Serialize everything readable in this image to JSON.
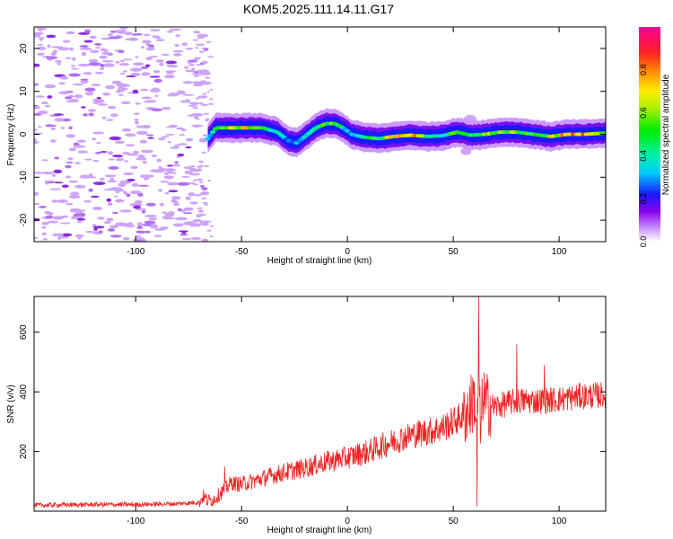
{
  "title": "KOM5.2025.111.14.11.G17",
  "chart_data": [
    {
      "type": "heatmap",
      "xlabel": "Height of straight line (km)",
      "ylabel": "Frequency (Hz)",
      "xlim": [
        -148,
        122
      ],
      "ylim": [
        -25,
        25
      ],
      "xticks": [
        -100,
        -50,
        0,
        50,
        100
      ],
      "xtick_labels": [
        "-100",
        "-50",
        "0",
        "50",
        "100"
      ],
      "yticks": [
        -20,
        -10,
        0,
        10,
        20
      ],
      "ytick_labels": [
        "-20",
        "-10",
        "0",
        "10",
        "20"
      ],
      "colorbar": {
        "label": "Normalized spectral amplitude",
        "range": [
          0,
          1
        ],
        "ticks": [
          0,
          0.2,
          0.4,
          0.6,
          0.8
        ],
        "tick_labels": [
          "0.0",
          "0.2",
          "0.4",
          "0.6",
          "0.8"
        ]
      },
      "noise_region_x": [
        -148,
        -66
      ],
      "ridge": {
        "x": [
          -66,
          -62,
          -55,
          -48,
          -40,
          -33,
          -28,
          -24,
          -20,
          -15,
          -10,
          -6,
          -2,
          2,
          8,
          15,
          22,
          30,
          38,
          45,
          52,
          58,
          65,
          72,
          80,
          88,
          96,
          104,
          112,
          122
        ],
        "frequency": [
          -1.0,
          1.5,
          1.5,
          1.5,
          1.5,
          0.5,
          -1.5,
          -2.0,
          -0.5,
          1.5,
          2.5,
          2.5,
          1.5,
          0.0,
          -0.7,
          -1.0,
          -0.5,
          -0.2,
          -0.5,
          -0.3,
          0.5,
          -0.2,
          0.0,
          0.5,
          0.5,
          0.0,
          -0.5,
          0.0,
          0.0,
          0.3
        ],
        "amplitude": [
          0.35,
          0.45,
          0.6,
          0.75,
          0.5,
          0.4,
          0.3,
          0.3,
          0.35,
          0.4,
          0.55,
          0.6,
          0.4,
          0.3,
          0.45,
          0.55,
          0.7,
          0.85,
          0.5,
          0.4,
          0.55,
          0.45,
          0.6,
          0.6,
          0.55,
          0.5,
          0.65,
          0.75,
          0.9,
          0.6
        ]
      }
    },
    {
      "type": "line",
      "xlabel": "Height of straight line (km)",
      "ylabel": "SNR (v/v)",
      "xlim": [
        -148,
        122
      ],
      "ylim": [
        0,
        720
      ],
      "xticks": [
        -100,
        -50,
        0,
        50,
        100
      ],
      "xtick_labels": [
        "-100",
        "-50",
        "0",
        "50",
        "100"
      ],
      "yticks": [
        200,
        400,
        600
      ],
      "ytick_labels": [
        "200",
        "400",
        "600"
      ],
      "series": [
        {
          "color": "#ee2222",
          "x": [
            -148,
            -120,
            -100,
            -80,
            -70,
            -68,
            -66,
            -63,
            -60,
            -57,
            -55,
            -50,
            -40,
            -30,
            -20,
            -10,
            0,
            10,
            20,
            30,
            40,
            45,
            50,
            55,
            58,
            60,
            61,
            62,
            63,
            64,
            65,
            70,
            75,
            80,
            90,
            100,
            110,
            122
          ],
          "y": [
            20,
            22,
            22,
            25,
            30,
            50,
            35,
            40,
            60,
            80,
            95,
            90,
            110,
            130,
            145,
            165,
            180,
            200,
            230,
            255,
            270,
            280,
            300,
            320,
            350,
            380,
            300,
            420,
            250,
            400,
            360,
            350,
            360,
            370,
            370,
            375,
            385,
            390
          ]
        }
      ]
    }
  ]
}
